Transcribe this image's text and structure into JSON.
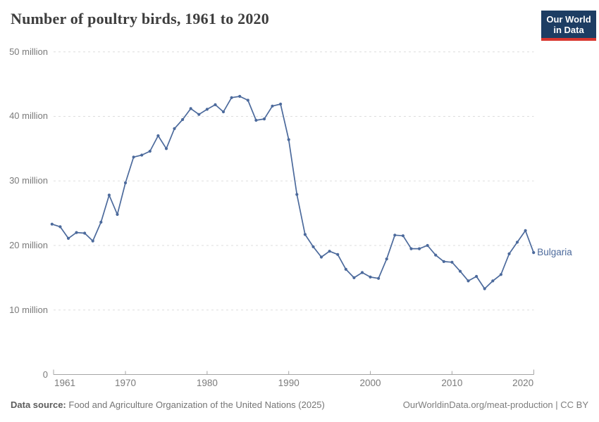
{
  "header": {
    "title": "Number of poultry birds, 1961 to 2020",
    "logo": {
      "line1": "Our World",
      "line2": "in Data"
    }
  },
  "chart_data": {
    "type": "line",
    "title": "Number of poultry birds, 1961 to 2020",
    "xlabel": "",
    "ylabel": "",
    "unit": "million birds",
    "xlim": [
      1961,
      2020
    ],
    "ylim": [
      0,
      50
    ],
    "grid": "horizontal-dashed",
    "legend_position": "end-of-line-label",
    "x_axis": {
      "ticks": [
        {
          "year": 1961,
          "label": "1961"
        },
        {
          "year": 1970,
          "label": "1970"
        },
        {
          "year": 1980,
          "label": "1980"
        },
        {
          "year": 1990,
          "label": "1990"
        },
        {
          "year": 2000,
          "label": "2000"
        },
        {
          "year": 2010,
          "label": "2010"
        },
        {
          "year": 2020,
          "label": "2020"
        }
      ]
    },
    "y_axis": {
      "ticks": [
        {
          "value": 0,
          "label": "0"
        },
        {
          "value": 10,
          "label": "10 million"
        },
        {
          "value": 20,
          "label": "20 million"
        },
        {
          "value": 30,
          "label": "30 million"
        },
        {
          "value": 40,
          "label": "40 million"
        },
        {
          "value": 50,
          "label": "50 million"
        }
      ]
    },
    "series": [
      {
        "name": "Bulgaria",
        "color": "#4C6A9C",
        "years": [
          1961,
          1962,
          1963,
          1964,
          1965,
          1966,
          1967,
          1968,
          1969,
          1970,
          1971,
          1972,
          1973,
          1974,
          1975,
          1976,
          1977,
          1978,
          1979,
          1980,
          1981,
          1982,
          1983,
          1984,
          1985,
          1986,
          1987,
          1988,
          1989,
          1990,
          1991,
          1992,
          1993,
          1994,
          1995,
          1996,
          1997,
          1998,
          1999,
          2000,
          2001,
          2002,
          2003,
          2004,
          2005,
          2006,
          2007,
          2008,
          2009,
          2010,
          2011,
          2012,
          2013,
          2014,
          2015,
          2016,
          2017,
          2018,
          2019,
          2020
        ],
        "values_millions": [
          23.3,
          22.9,
          21.1,
          22.0,
          21.9,
          20.7,
          23.6,
          27.8,
          24.8,
          29.7,
          33.7,
          34.0,
          34.6,
          37.0,
          35.0,
          38.1,
          39.5,
          41.2,
          40.3,
          41.1,
          41.8,
          40.7,
          42.9,
          43.1,
          42.5,
          39.4,
          39.6,
          41.6,
          41.9,
          36.4,
          27.9,
          21.7,
          19.8,
          18.2,
          19.1,
          18.6,
          16.3,
          15.0,
          15.8,
          15.1,
          14.9,
          17.9,
          21.6,
          21.5,
          19.5,
          19.5,
          20.0,
          18.5,
          17.5,
          17.4,
          16.0,
          14.5,
          15.2,
          13.3,
          14.5,
          15.5,
          18.7,
          20.5,
          22.3,
          18.9
        ]
      }
    ]
  },
  "footer": {
    "source_bold": "Data source:",
    "source_text": "Food and Agriculture Organization of the United Nations (2025)",
    "attribution": "OurWorldinData.org/meat-production | CC BY"
  },
  "colors": {
    "line": "#4C6A9C",
    "gridline": "#dddddd",
    "axis": "#a5a5a5",
    "tick_text": "#7b7b7b",
    "title_text": "#3d3d3d",
    "logo_bg": "#1d3d63",
    "logo_red": "#d8352e"
  }
}
